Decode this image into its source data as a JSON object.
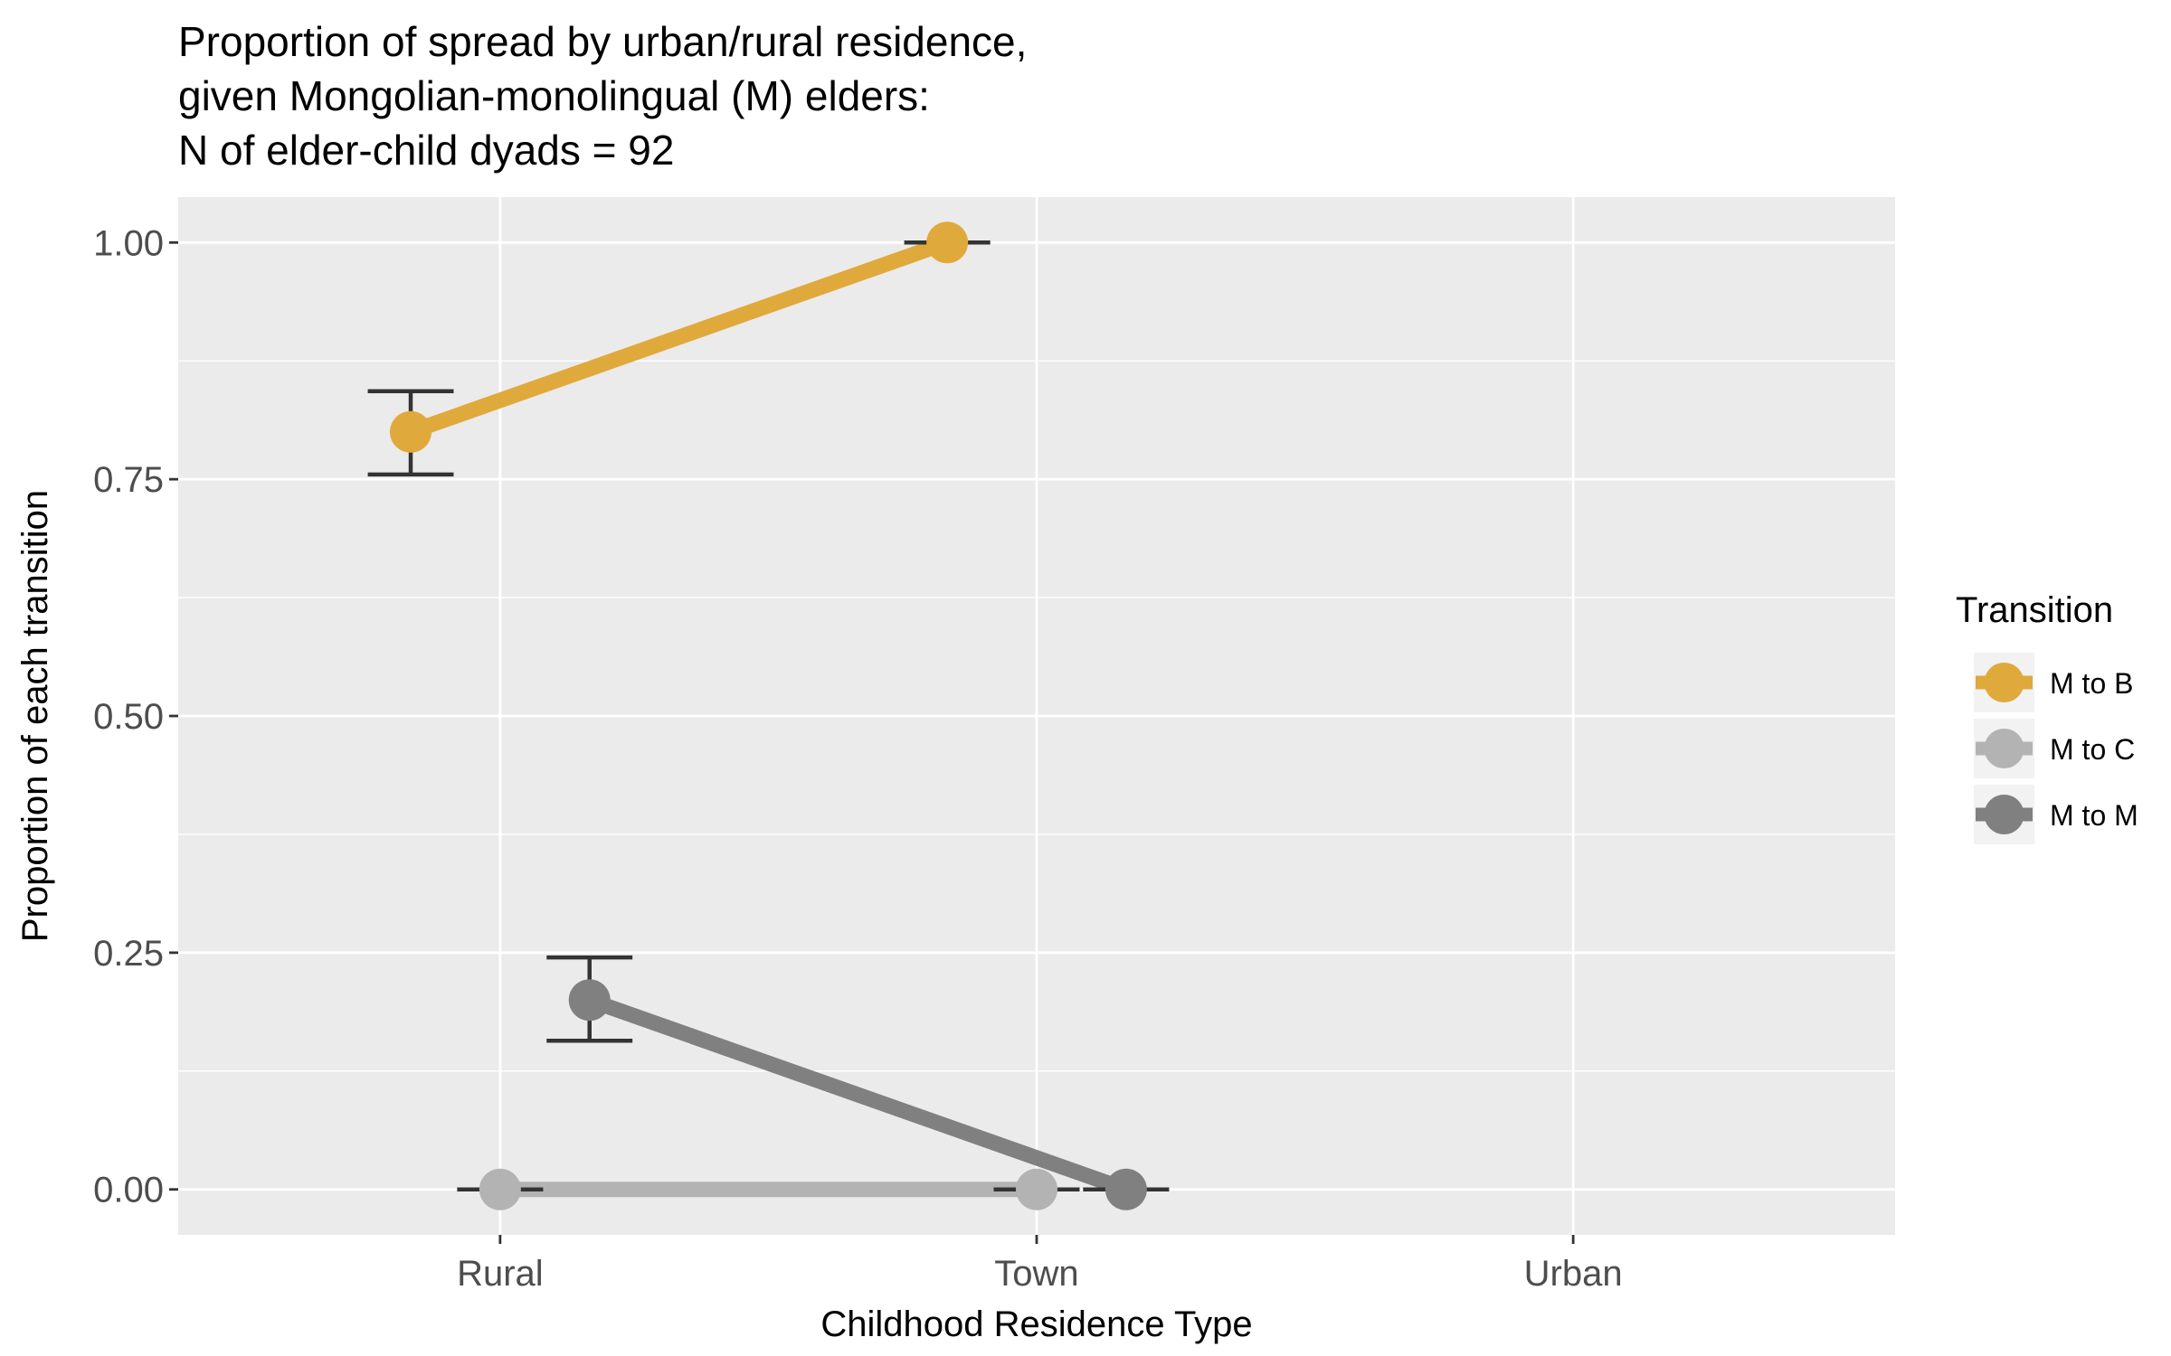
{
  "chart_data": {
    "type": "line",
    "title_lines": [
      "Proportion of spread by urban/rural residence,",
      "given Mongolian-monolingual (M) elders:",
      "N of elder-child dyads = 92"
    ],
    "xlabel": "Childhood Residence Type",
    "ylabel": "Proportion of each transition",
    "categories": [
      "Rural",
      "Town",
      "Urban"
    ],
    "y_ticks": [
      {
        "value": 0,
        "label": "0.00"
      },
      {
        "value": 0.25,
        "label": "0.25"
      },
      {
        "value": 0.5,
        "label": "0.50"
      },
      {
        "value": 0.75,
        "label": "0.75"
      },
      {
        "value": 1,
        "label": "1.00"
      }
    ],
    "ylim": [
      -0.048,
      1.048
    ],
    "dodge_width": 0.5,
    "legend": {
      "title": "Transition",
      "position": "right"
    },
    "series": [
      {
        "name": "M to B",
        "color": "#E0A93B",
        "points": [
          {
            "category": "Rural",
            "value": 0.8,
            "lower": 0.755,
            "upper": 0.843
          },
          {
            "category": "Town",
            "value": 1.0,
            "lower": 1.0,
            "upper": 1.0
          }
        ]
      },
      {
        "name": "M to C",
        "color": "#B3B3B3",
        "points": [
          {
            "category": "Rural",
            "value": 0.0,
            "lower": 0.0,
            "upper": 0.0
          },
          {
            "category": "Town",
            "value": 0.0,
            "lower": 0.0,
            "upper": 0.0
          }
        ]
      },
      {
        "name": "M to M",
        "color": "#808080",
        "points": [
          {
            "category": "Rural",
            "value": 0.2,
            "lower": 0.157,
            "upper": 0.245
          },
          {
            "category": "Town",
            "value": 0.0,
            "lower": 0.0,
            "upper": 0.0
          }
        ]
      }
    ]
  }
}
